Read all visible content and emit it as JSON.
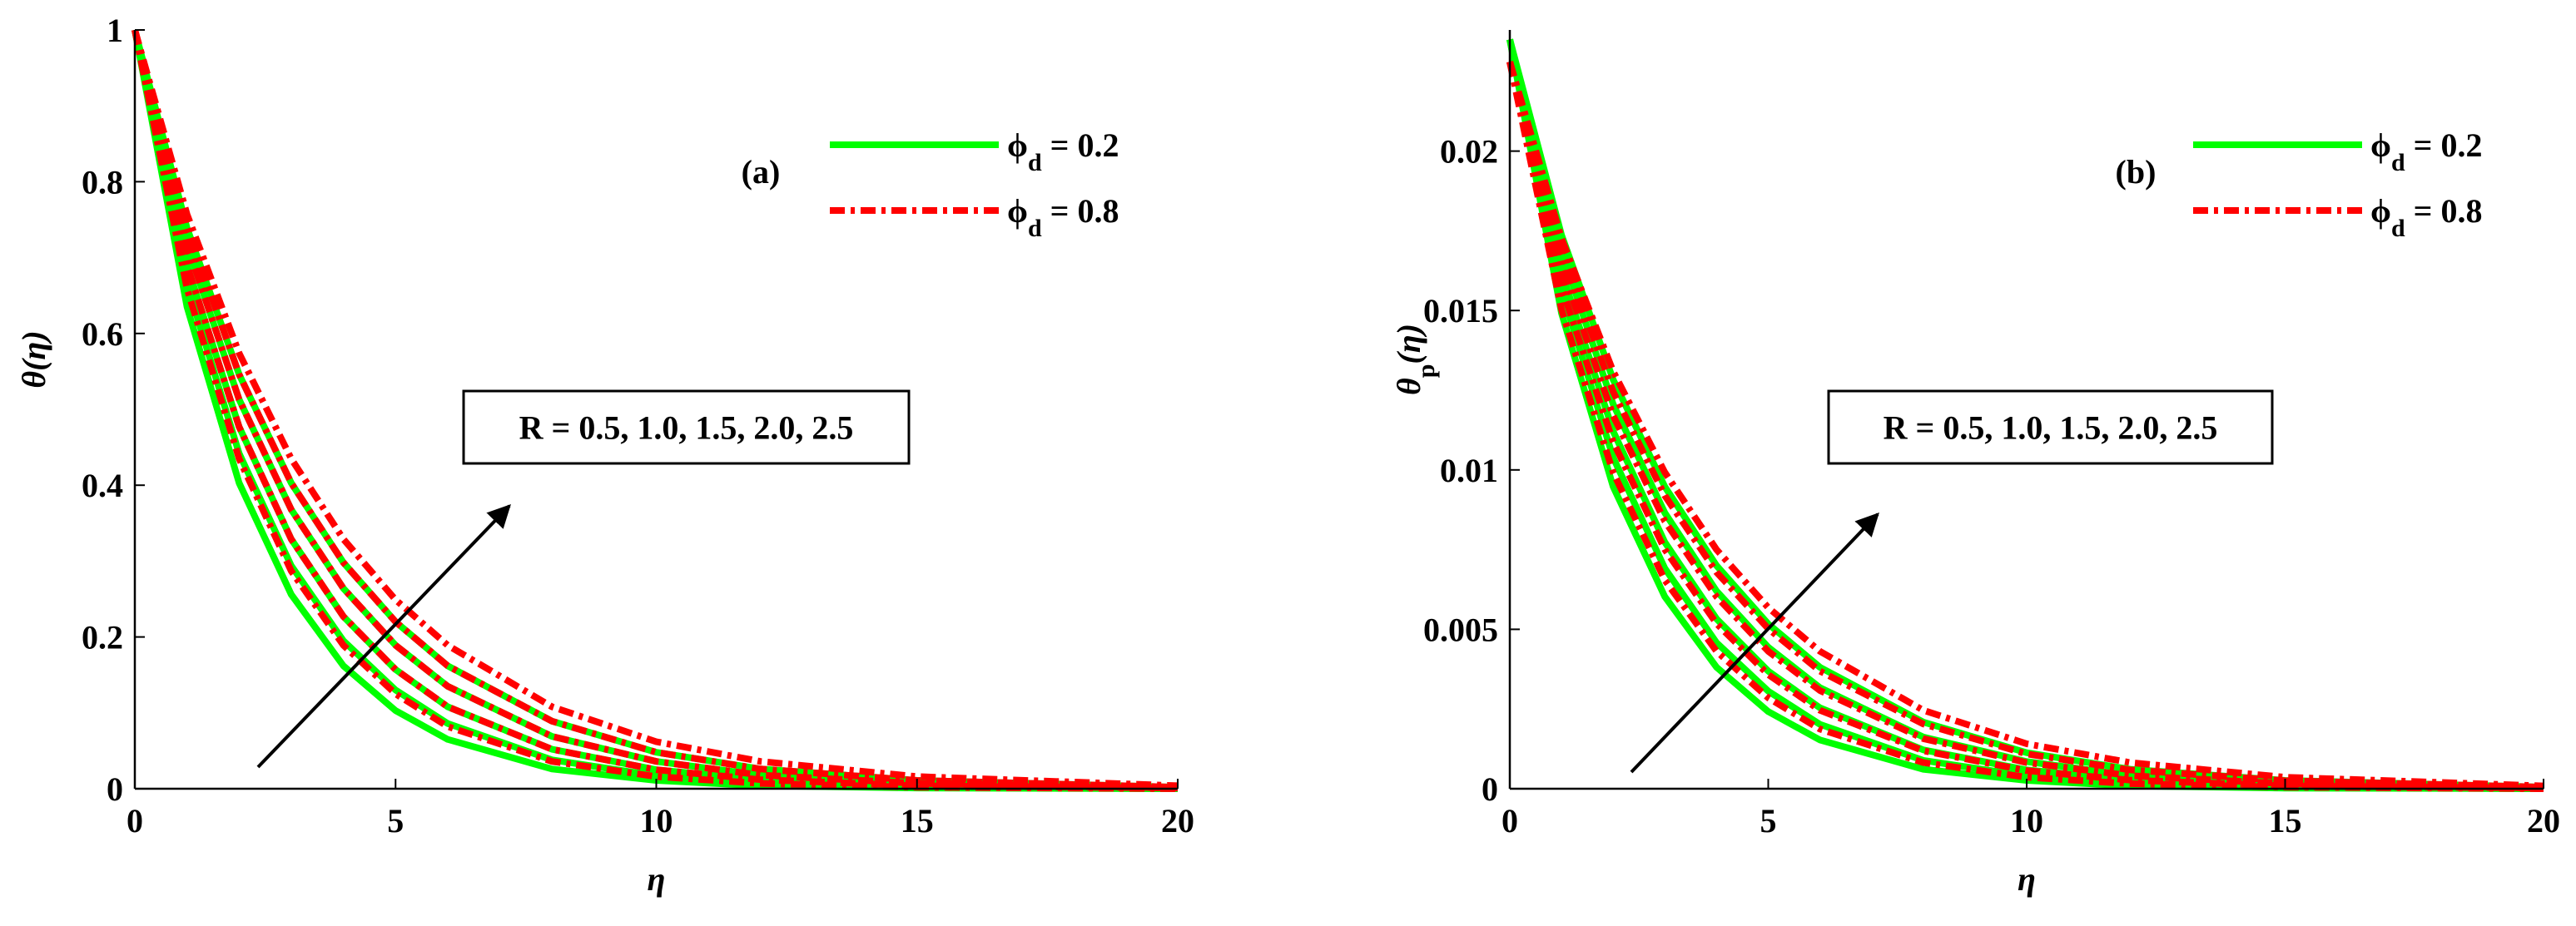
{
  "chart_data": [
    {
      "type": "line",
      "panel": "(a)",
      "xlabel": "η",
      "ylabel": [
        "θ(η)"
      ],
      "annotation": "R = 0.5, 1.0, 1.5, 2.0, 2.5",
      "x": [
        0,
        1,
        2,
        3,
        4,
        5,
        6,
        8,
        10,
        12,
        15,
        20
      ],
      "xlim": [
        0,
        20
      ],
      "xticks": [
        0,
        5,
        10,
        15,
        20
      ],
      "ylim": [
        0,
        1
      ],
      "yticks": [
        0,
        0.2,
        0.4,
        0.6,
        0.8,
        1
      ],
      "legend": "upper right",
      "series": [
        {
          "name": [
            "ϕ",
            "d",
            " = 0.2"
          ],
          "color": "#00ff00",
          "dash": false,
          "curves": [
            [
              1,
              0.635,
              0.403,
              0.256,
              0.162,
              0.103,
              0.065,
              0.026,
              0.011,
              0.004,
              0.001,
              0
            ],
            [
              1,
              0.665,
              0.442,
              0.294,
              0.195,
              0.13,
              0.086,
              0.038,
              0.017,
              0.007,
              0.002,
              0
            ],
            [
              1,
              0.69,
              0.477,
              0.329,
              0.227,
              0.157,
              0.108,
              0.052,
              0.025,
              0.012,
              0.004,
              0.001
            ],
            [
              1,
              0.717,
              0.513,
              0.368,
              0.264,
              0.189,
              0.135,
              0.069,
              0.036,
              0.018,
              0.007,
              0.001
            ],
            [
              1,
              0.739,
              0.546,
              0.403,
              0.298,
              0.22,
              0.162,
              0.089,
              0.048,
              0.026,
              0.011,
              0.002
            ]
          ]
        },
        {
          "name": [
            "ϕ",
            "d",
            " = 0.8"
          ],
          "color": "#ff0000",
          "dash": true,
          "curves": [
            [
              1,
              0.659,
              0.435,
              0.287,
              0.189,
              0.125,
              0.082,
              0.036,
              0.016,
              0.007,
              0.002,
              0
            ],
            [
              1,
              0.69,
              0.477,
              0.329,
              0.227,
              0.157,
              0.108,
              0.052,
              0.025,
              0.012,
              0.004,
              0.001
            ],
            [
              1,
              0.717,
              0.513,
              0.368,
              0.264,
              0.189,
              0.135,
              0.069,
              0.036,
              0.018,
              0.007,
              0.001
            ],
            [
              1,
              0.739,
              0.546,
              0.403,
              0.298,
              0.22,
              0.162,
              0.089,
              0.048,
              0.026,
              0.011,
              0.002
            ],
            [
              1,
              0.757,
              0.574,
              0.435,
              0.329,
              0.249,
              0.189,
              0.108,
              0.062,
              0.036,
              0.016,
              0.004
            ]
          ]
        }
      ]
    },
    {
      "type": "line",
      "panel": "(b)",
      "xlabel": "η",
      "ylabel": [
        "θ",
        "p",
        "(η)"
      ],
      "annotation": "R = 0.5, 1.0, 1.5, 2.0, 2.5",
      "x": [
        0,
        1,
        2,
        3,
        4,
        5,
        6,
        8,
        10,
        12,
        15,
        20
      ],
      "xlim": [
        0,
        20
      ],
      "xticks": [
        0,
        5,
        10,
        15,
        20
      ],
      "ylim": [
        0,
        0.0238
      ],
      "yticks": [
        0,
        0.005,
        0.01,
        0.015,
        0.02
      ],
      "legend": "upper right",
      "series": [
        {
          "name": [
            "ϕ",
            "d",
            " = 0.2"
          ],
          "color": "#00ff00",
          "dash": false,
          "curves": [
            [
              0.0235,
              0.01492,
              0.00947,
              0.00602,
              0.00381,
              0.00242,
              0.00153,
              0.00061,
              0.00026,
              9e-05,
              2e-05,
              0
            ],
            [
              0.0235,
              0.01563,
              0.01039,
              0.00691,
              0.00458,
              0.00306,
              0.00202,
              0.00089,
              0.0004,
              0.00016,
              5e-05,
              0
            ],
            [
              0.0235,
              0.01622,
              0.01121,
              0.00773,
              0.00533,
              0.00369,
              0.00254,
              0.00122,
              0.00059,
              0.00028,
              9e-05,
              2e-05
            ],
            [
              0.0235,
              0.01685,
              0.01206,
              0.00865,
              0.0062,
              0.00444,
              0.00317,
              0.00162,
              0.00085,
              0.00042,
              0.00016,
              2e-05
            ],
            [
              0.0235,
              0.01737,
              0.01283,
              0.00947,
              0.007,
              0.00517,
              0.00381,
              0.00209,
              0.00113,
              0.00061,
              0.00026,
              5e-05
            ]
          ]
        },
        {
          "name": [
            "ϕ",
            "d",
            " = 0.8"
          ],
          "color": "#ff0000",
          "dash": true,
          "curves": [
            [
              0.0228,
              0.01503,
              0.00992,
              0.00654,
              0.00431,
              0.00285,
              0.00187,
              0.00082,
              0.00036,
              0.00016,
              5e-05,
              0
            ],
            [
              0.0228,
              0.01573,
              0.01088,
              0.0075,
              0.00518,
              0.00358,
              0.00246,
              0.00119,
              0.00057,
              0.00027,
              9e-05,
              2e-05
            ],
            [
              0.0228,
              0.01635,
              0.0117,
              0.00839,
              0.00602,
              0.00431,
              0.00308,
              0.00157,
              0.00082,
              0.00041,
              0.00016,
              2e-05
            ],
            [
              0.0228,
              0.01685,
              0.01245,
              0.00919,
              0.00679,
              0.00502,
              0.00369,
              0.00203,
              0.00109,
              0.00059,
              0.00025,
              5e-05
            ],
            [
              0.0228,
              0.01726,
              0.01309,
              0.00992,
              0.0075,
              0.00568,
              0.00431,
              0.00246,
              0.00141,
              0.00082,
              0.00036,
              9e-05
            ]
          ]
        }
      ]
    }
  ]
}
